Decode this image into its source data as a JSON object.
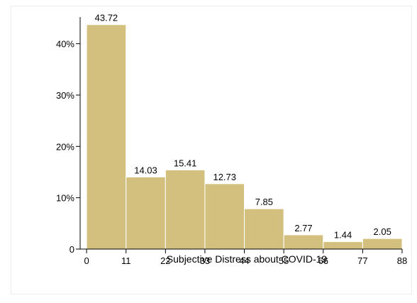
{
  "chart_data": {
    "type": "bar",
    "title": "",
    "xlabel": "Subjective Distress about COVID-19",
    "ylabel": "",
    "bin_edges": [
      0,
      11,
      22,
      33,
      44,
      55,
      66,
      77,
      88
    ],
    "x_ticks": [
      "0",
      "11",
      "22",
      "33",
      "44",
      "55",
      "66",
      "77",
      "88"
    ],
    "values": [
      43.72,
      14.03,
      15.41,
      12.73,
      7.85,
      2.77,
      1.44,
      2.05
    ],
    "data_labels": [
      "43.72",
      "14.03",
      "15.41",
      "12.73",
      "7.85",
      "2.77",
      "1.44",
      "2.05"
    ],
    "y_ticks": [
      {
        "value": 0,
        "label": "0"
      },
      {
        "value": 10,
        "label": "10%"
      },
      {
        "value": 20,
        "label": "20%"
      },
      {
        "value": 30,
        "label": "30%"
      },
      {
        "value": 40,
        "label": "40%"
      }
    ],
    "ylim": [
      0,
      45.2
    ],
    "xlim": [
      -1.8,
      88
    ],
    "grid": false,
    "bar_color": "#d4c07e",
    "bar_edge_color": "#ffffff"
  }
}
